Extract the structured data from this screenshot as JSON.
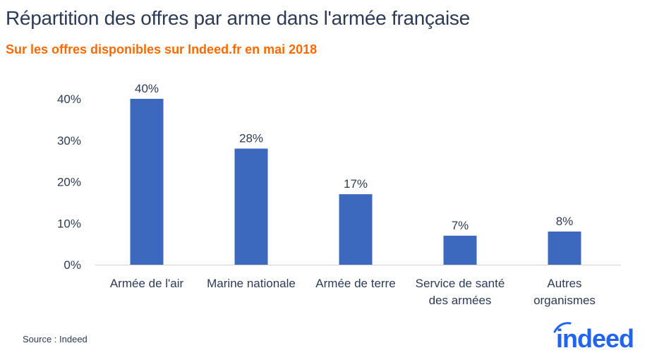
{
  "title": "Répartition des offres par arme dans l'armée française",
  "subtitle": "Sur les offres disponibles sur Indeed.fr en mai 2018",
  "source": "Source : Indeed",
  "logo_text": "indeed",
  "chart_data": {
    "type": "bar",
    "categories": [
      [
        "Armée de l'air"
      ],
      [
        "Marine nationale"
      ],
      [
        "Armée de terre"
      ],
      [
        "Service de santé",
        "des armées"
      ],
      [
        "Autres",
        "organismes"
      ]
    ],
    "values": [
      40,
      28,
      17,
      7,
      8
    ],
    "data_labels": [
      "40%",
      "28%",
      "17%",
      "7%",
      "8%"
    ],
    "ylim": [
      0,
      40
    ],
    "yticks": [
      0,
      10,
      20,
      30,
      40
    ],
    "ytick_labels": [
      "0%",
      "10%",
      "20%",
      "30%",
      "40%"
    ],
    "grid": false,
    "bar_color": "#3c68be",
    "text_color": "#2c3b57"
  }
}
